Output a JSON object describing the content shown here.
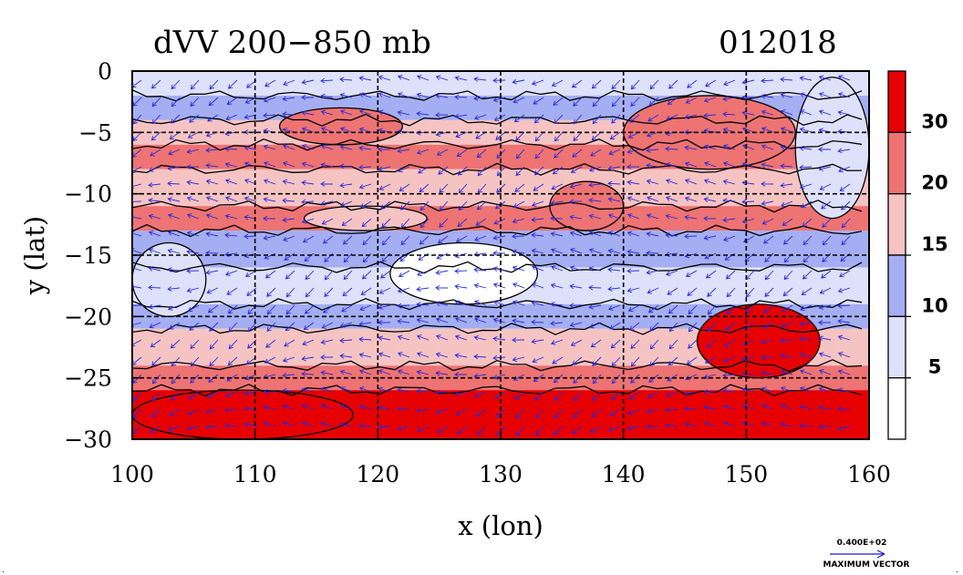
{
  "chart_data": {
    "type": "heatmap",
    "title": "dVV 200−850 mb",
    "date_label": "012018",
    "xlabel": "x (lon)",
    "ylabel": "y (lat)",
    "xlim": [
      100,
      160
    ],
    "ylim": [
      -30,
      0
    ],
    "x_ticks": [
      "100",
      "110",
      "120",
      "130",
      "140",
      "150",
      "160"
    ],
    "x_tick_values": [
      100,
      110,
      120,
      130,
      140,
      150,
      160
    ],
    "y_ticks": [
      "0",
      "−5",
      "−10",
      "−15",
      "−20",
      "−25",
      "−30"
    ],
    "y_tick_values": [
      0,
      -5,
      -10,
      -15,
      -20,
      -25,
      -30
    ],
    "grid": true,
    "colorbar": {
      "labels": [
        "30",
        "20",
        "15",
        "10",
        "5"
      ],
      "label_values": [
        30,
        20,
        15,
        10,
        5
      ],
      "colors": [
        "#e60000",
        "#ee7373",
        "#f6c3c3",
        "#a4aef2",
        "#dde1fa",
        "#ffffff"
      ]
    },
    "vector_legend": {
      "value": "0.400E+02",
      "label": "MAXIMUM VECTOR"
    },
    "field_rows": [
      {
        "lat_from": 0,
        "lat_to": -2,
        "level": 4
      },
      {
        "lat_from": -2,
        "lat_to": -4,
        "level": 3
      },
      {
        "lat_from": -4,
        "lat_to": -6,
        "level": 2
      },
      {
        "lat_from": -6,
        "lat_to": -8,
        "level": 1
      },
      {
        "lat_from": -8,
        "lat_to": -11,
        "level": 2
      },
      {
        "lat_from": -11,
        "lat_to": -13,
        "level": 1
      },
      {
        "lat_from": -13,
        "lat_to": -16,
        "level": 3
      },
      {
        "lat_from": -16,
        "lat_to": -19,
        "level": 4
      },
      {
        "lat_from": -19,
        "lat_to": -21,
        "level": 3
      },
      {
        "lat_from": -21,
        "lat_to": -24,
        "level": 2
      },
      {
        "lat_from": -24,
        "lat_to": -26,
        "level": 1
      },
      {
        "lat_from": -26,
        "lat_to": -30,
        "level": 0
      }
    ],
    "patches": [
      {
        "x": [
          100,
          106
        ],
        "y": [
          -14,
          -20
        ],
        "level": 4
      },
      {
        "x": [
          121,
          133
        ],
        "y": [
          -14,
          -19
        ],
        "level": 5
      },
      {
        "x": [
          140,
          154
        ],
        "y": [
          -2,
          -8
        ],
        "level": 1
      },
      {
        "x": [
          146,
          156
        ],
        "y": [
          -19,
          -25
        ],
        "level": 0
      },
      {
        "x": [
          112,
          122
        ],
        "y": [
          -3,
          -6
        ],
        "level": 1
      },
      {
        "x": [
          134,
          140
        ],
        "y": [
          -9,
          -13
        ],
        "level": 1
      },
      {
        "x": [
          100,
          118
        ],
        "y": [
          -26,
          -30
        ],
        "level": 0
      },
      {
        "x": [
          154,
          160
        ],
        "y": [
          -0.5,
          -12
        ],
        "level": 4
      },
      {
        "x": [
          114,
          124
        ],
        "y": [
          -11,
          -13
        ],
        "level": 2
      }
    ],
    "wind_u": -4,
    "wind_v": -1
  }
}
